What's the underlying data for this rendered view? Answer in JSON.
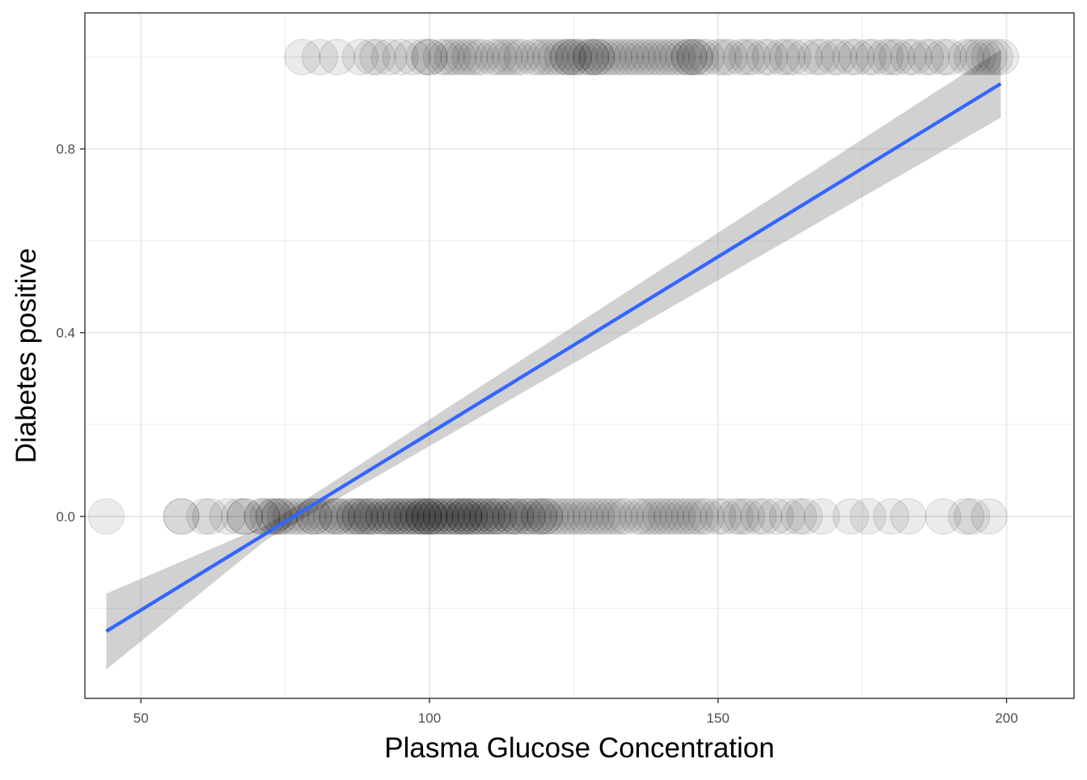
{
  "chart_data": {
    "type": "scatter",
    "title": "",
    "xlabel": "Plasma Glucose Concentration",
    "ylabel": "Diabetes positive",
    "xlim": [
      40.3,
      211.7
    ],
    "ylim": [
      -0.396,
      1.096
    ],
    "x_ticks": [
      50,
      100,
      150,
      200
    ],
    "x_tick_labels": [
      "50",
      "100",
      "150",
      "200"
    ],
    "y_ticks": [
      0.0,
      0.4,
      0.8
    ],
    "y_tick_labels": [
      "0.0",
      "0.4",
      "0.8"
    ],
    "grid": true,
    "legend": "none",
    "series": [
      {
        "kind": "points",
        "point_color": "#000000",
        "point_alpha": 0.08,
        "points": [
          [
            44,
            0
          ],
          [
            57,
            0
          ],
          [
            57,
            0
          ],
          [
            61,
            0
          ],
          [
            62,
            0
          ],
          [
            65,
            0
          ],
          [
            67,
            0
          ],
          [
            68,
            0
          ],
          [
            68,
            0
          ],
          [
            71,
            0
          ],
          [
            71,
            0
          ],
          [
            72,
            0
          ],
          [
            73,
            0
          ],
          [
            73,
            0
          ],
          [
            74,
            0
          ],
          [
            74,
            0
          ],
          [
            75,
            0
          ],
          [
            76,
            0
          ],
          [
            77,
            0
          ],
          [
            78,
            0
          ],
          [
            79,
            0
          ],
          [
            80,
            0
          ],
          [
            80,
            0
          ],
          [
            81,
            0
          ],
          [
            82,
            0
          ],
          [
            83,
            0
          ],
          [
            84,
            0
          ],
          [
            84,
            0
          ],
          [
            85,
            0
          ],
          [
            86,
            0
          ],
          [
            87,
            0
          ],
          [
            87,
            0
          ],
          [
            88,
            0
          ],
          [
            88,
            0
          ],
          [
            89,
            0
          ],
          [
            89,
            0
          ],
          [
            90,
            0
          ],
          [
            90,
            0
          ],
          [
            91,
            0
          ],
          [
            92,
            0
          ],
          [
            92,
            0
          ],
          [
            93,
            0
          ],
          [
            93,
            0
          ],
          [
            94,
            0
          ],
          [
            94,
            0
          ],
          [
            95,
            0
          ],
          [
            95,
            0
          ],
          [
            96,
            0
          ],
          [
            96,
            0
          ],
          [
            97,
            0
          ],
          [
            97,
            0
          ],
          [
            98,
            0
          ],
          [
            98,
            0
          ],
          [
            99,
            0
          ],
          [
            99,
            0
          ],
          [
            99,
            0
          ],
          [
            100,
            0
          ],
          [
            100,
            0
          ],
          [
            100,
            0
          ],
          [
            101,
            0
          ],
          [
            101,
            0
          ],
          [
            102,
            0
          ],
          [
            102,
            0
          ],
          [
            103,
            0
          ],
          [
            103,
            0
          ],
          [
            104,
            0
          ],
          [
            104,
            0
          ],
          [
            105,
            0
          ],
          [
            105,
            0
          ],
          [
            106,
            0
          ],
          [
            106,
            0
          ],
          [
            106,
            0
          ],
          [
            107,
            0
          ],
          [
            107,
            0
          ],
          [
            108,
            0
          ],
          [
            108,
            0
          ],
          [
            109,
            0
          ],
          [
            109,
            0
          ],
          [
            110,
            0
          ],
          [
            110,
            0
          ],
          [
            111,
            0
          ],
          [
            111,
            0
          ],
          [
            112,
            0
          ],
          [
            112,
            0
          ],
          [
            113,
            0
          ],
          [
            114,
            0
          ],
          [
            114,
            0
          ],
          [
            115,
            0
          ],
          [
            115,
            0
          ],
          [
            116,
            0
          ],
          [
            117,
            0
          ],
          [
            117,
            0
          ],
          [
            118,
            0
          ],
          [
            119,
            0
          ],
          [
            119,
            0
          ],
          [
            120,
            0
          ],
          [
            120,
            0
          ],
          [
            121,
            0
          ],
          [
            122,
            0
          ],
          [
            123,
            0
          ],
          [
            124,
            0
          ],
          [
            125,
            0
          ],
          [
            126,
            0
          ],
          [
            127,
            0
          ],
          [
            128,
            0
          ],
          [
            129,
            0
          ],
          [
            130,
            0
          ],
          [
            131,
            0
          ],
          [
            132,
            0
          ],
          [
            133,
            0
          ],
          [
            134,
            0
          ],
          [
            136,
            0
          ],
          [
            137,
            0
          ],
          [
            138,
            0
          ],
          [
            139,
            0
          ],
          [
            140,
            0
          ],
          [
            141,
            0
          ],
          [
            142,
            0
          ],
          [
            143,
            0
          ],
          [
            144,
            0
          ],
          [
            145,
            0
          ],
          [
            146,
            0
          ],
          [
            147,
            0
          ],
          [
            148,
            0
          ],
          [
            150,
            0
          ],
          [
            151,
            0
          ],
          [
            153,
            0
          ],
          [
            154,
            0
          ],
          [
            155,
            0
          ],
          [
            157,
            0
          ],
          [
            158,
            0
          ],
          [
            160,
            0
          ],
          [
            162,
            0
          ],
          [
            164,
            0
          ],
          [
            165,
            0
          ],
          [
            168,
            0
          ],
          [
            173,
            0
          ],
          [
            176,
            0
          ],
          [
            180,
            0
          ],
          [
            183,
            0
          ],
          [
            189,
            0
          ],
          [
            193,
            0
          ],
          [
            194,
            0
          ],
          [
            197,
            0
          ],
          [
            78,
            1
          ],
          [
            81,
            1
          ],
          [
            84,
            1
          ],
          [
            88,
            1
          ],
          [
            90,
            1
          ],
          [
            91,
            1
          ],
          [
            93,
            1
          ],
          [
            95,
            1
          ],
          [
            97,
            1
          ],
          [
            99,
            1
          ],
          [
            100,
            1
          ],
          [
            100,
            1
          ],
          [
            102,
            1
          ],
          [
            103,
            1
          ],
          [
            104,
            1
          ],
          [
            105,
            1
          ],
          [
            106,
            1
          ],
          [
            107,
            1
          ],
          [
            108,
            1
          ],
          [
            109,
            1
          ],
          [
            111,
            1
          ],
          [
            112,
            1
          ],
          [
            113,
            1
          ],
          [
            114,
            1
          ],
          [
            115,
            1
          ],
          [
            116,
            1
          ],
          [
            118,
            1
          ],
          [
            119,
            1
          ],
          [
            120,
            1
          ],
          [
            121,
            1
          ],
          [
            122,
            1
          ],
          [
            123,
            1
          ],
          [
            124,
            1
          ],
          [
            124,
            1
          ],
          [
            125,
            1
          ],
          [
            125,
            1
          ],
          [
            126,
            1
          ],
          [
            127,
            1
          ],
          [
            128,
            1
          ],
          [
            128,
            1
          ],
          [
            129,
            1
          ],
          [
            129,
            1
          ],
          [
            130,
            1
          ],
          [
            131,
            1
          ],
          [
            132,
            1
          ],
          [
            133,
            1
          ],
          [
            134,
            1
          ],
          [
            135,
            1
          ],
          [
            136,
            1
          ],
          [
            137,
            1
          ],
          [
            138,
            1
          ],
          [
            139,
            1
          ],
          [
            140,
            1
          ],
          [
            141,
            1
          ],
          [
            142,
            1
          ],
          [
            143,
            1
          ],
          [
            144,
            1
          ],
          [
            145,
            1
          ],
          [
            145,
            1
          ],
          [
            146,
            1
          ],
          [
            146,
            1
          ],
          [
            147,
            1
          ],
          [
            148,
            1
          ],
          [
            150,
            1
          ],
          [
            151,
            1
          ],
          [
            152,
            1
          ],
          [
            154,
            1
          ],
          [
            155,
            1
          ],
          [
            156,
            1
          ],
          [
            158,
            1
          ],
          [
            159,
            1
          ],
          [
            161,
            1
          ],
          [
            162,
            1
          ],
          [
            163,
            1
          ],
          [
            165,
            1
          ],
          [
            167,
            1
          ],
          [
            168,
            1
          ],
          [
            170,
            1
          ],
          [
            171,
            1
          ],
          [
            173,
            1
          ],
          [
            174,
            1
          ],
          [
            176,
            1
          ],
          [
            177,
            1
          ],
          [
            179,
            1
          ],
          [
            180,
            1
          ],
          [
            181,
            1
          ],
          [
            183,
            1
          ],
          [
            184,
            1
          ],
          [
            186,
            1
          ],
          [
            187,
            1
          ],
          [
            189,
            1
          ],
          [
            190,
            1
          ],
          [
            193,
            1
          ],
          [
            194,
            1
          ],
          [
            195,
            1
          ],
          [
            196,
            1
          ],
          [
            197,
            1
          ],
          [
            198,
            1
          ],
          [
            199,
            1
          ]
        ]
      },
      {
        "kind": "line",
        "color": "#3366FF",
        "x": [
          44,
          199
        ],
        "y": [
          -0.25,
          0.942
        ]
      },
      {
        "kind": "band",
        "color": "#999999",
        "x": [
          44,
          71.6,
          199
        ],
        "lower": [
          -0.333,
          -0.052,
          0.868
        ],
        "upper": [
          -0.168,
          -0.02,
          1.016
        ]
      }
    ]
  }
}
